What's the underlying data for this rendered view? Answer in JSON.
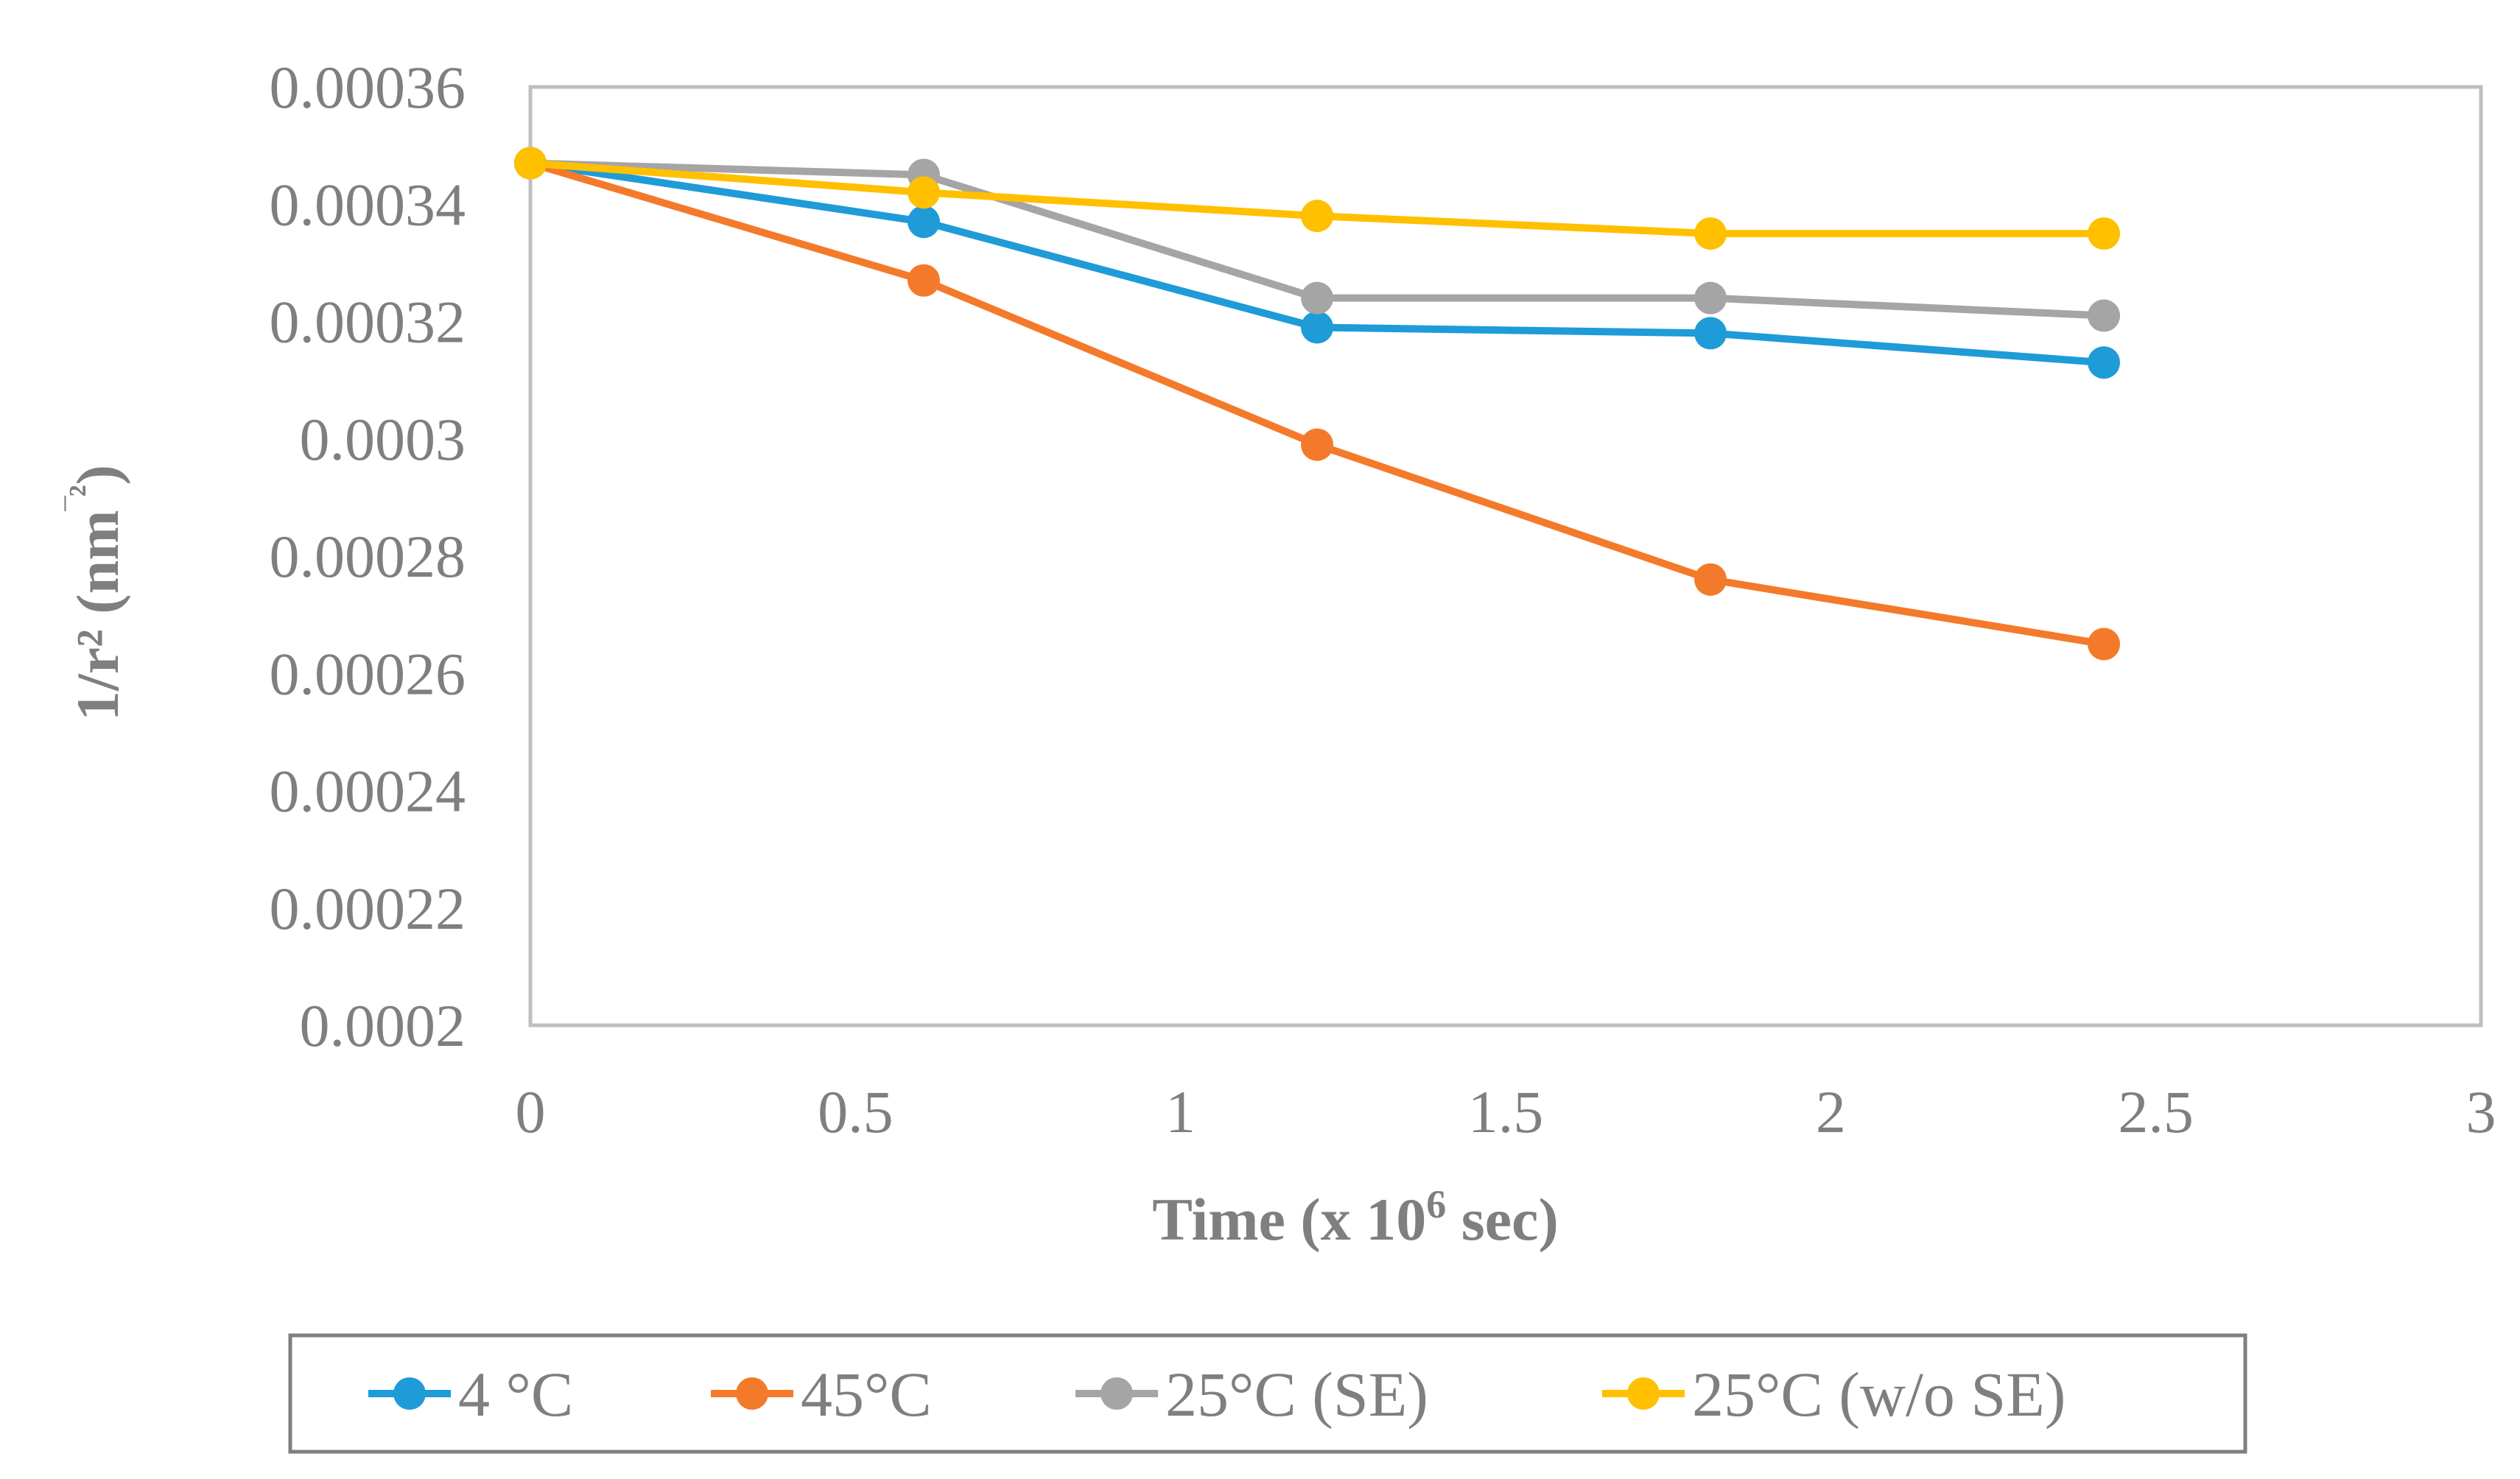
{
  "chart_data": {
    "type": "line",
    "title": "",
    "xlabel": "Time (x 10⁶ sec)",
    "xlabel_main": "Time (x 10",
    "xlabel_sup": "6",
    "xlabel_tail": " sec)",
    "ylabel": "1/r² (nm⁻²)",
    "ylabel_main": "1/r² (nm",
    "ylabel_sup": "‾²",
    "ylabel_tail": ")",
    "xlim": [
      0,
      3
    ],
    "ylim": [
      0.0002,
      0.00036
    ],
    "x_ticks": [
      0,
      0.5,
      1,
      1.5,
      2,
      2.5,
      3
    ],
    "x_tick_labels": [
      "0",
      "0.5",
      "1",
      "1.5",
      "2",
      "2.5",
      "3"
    ],
    "y_ticks": [
      0.0002,
      0.00022,
      0.00024,
      0.00026,
      0.00028,
      0.0003,
      0.00032,
      0.00034,
      0.00036
    ],
    "y_tick_labels": [
      "0.0002",
      "0.00022",
      "0.00024",
      "0.00026",
      "0.00028",
      "0.0003",
      "0.00032",
      "0.00034",
      "0.00036"
    ],
    "grid": false,
    "legend_position": "bottom",
    "x": [
      0,
      0.605,
      1.21,
      1.815,
      2.42
    ],
    "series": [
      {
        "name": "4 °C",
        "color": "#1f9bd7",
        "values": [
          0.000347,
          0.000337,
          0.000319,
          0.000318,
          0.000313
        ]
      },
      {
        "name": "45°C",
        "color": "#f47a2b",
        "values": [
          0.000347,
          0.000327,
          0.000299,
          0.000276,
          0.000265
        ]
      },
      {
        "name": "25°C (SE)",
        "color": "#a5a5a5",
        "values": [
          0.000347,
          0.000345,
          0.000324,
          0.000324,
          0.000321
        ]
      },
      {
        "name": "25°C (w/o SE)",
        "color": "#ffc000",
        "values": [
          0.000347,
          0.000342,
          0.000338,
          0.000335,
          0.000335
        ]
      }
    ]
  }
}
